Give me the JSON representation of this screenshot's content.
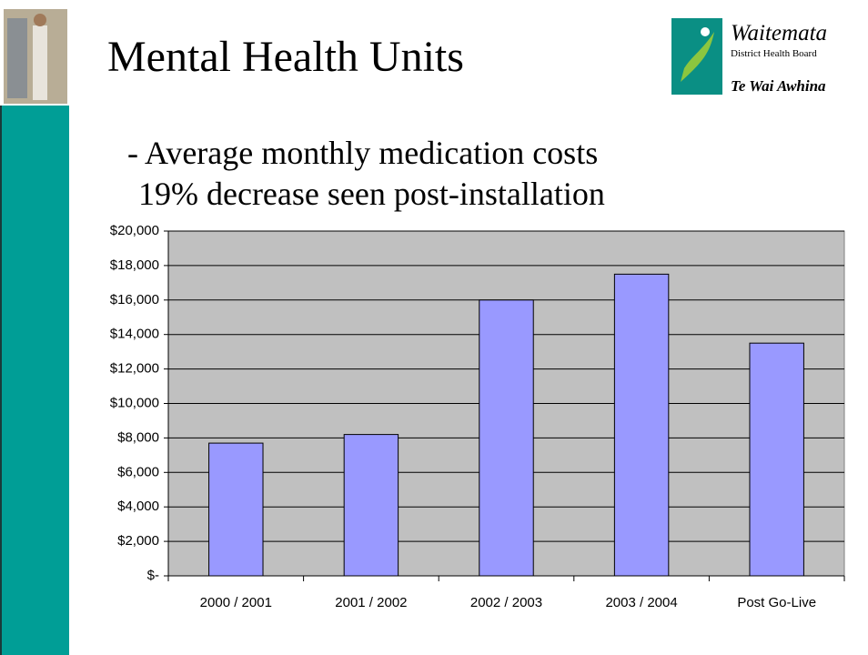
{
  "chart_data": {
    "type": "bar",
    "title": "Mental Health Units",
    "subtitle": [
      "- Average monthly medication costs",
      "19% decrease seen post-installation"
    ],
    "logo": {
      "name": "Waitemata",
      "org": "District Health Board",
      "motto": "Te Wai Awhina"
    },
    "categories": [
      "2000 / 2001",
      "2001 / 2002",
      "2002 / 2003",
      "2003 / 2004",
      "Post Go-Live"
    ],
    "values": [
      7700,
      8200,
      16000,
      17500,
      13500
    ],
    "color": "#9999ff",
    "ylim": [
      0,
      20000
    ],
    "yticks": [
      {
        "value": 0,
        "label": "$-"
      },
      {
        "value": 2000,
        "label": "$2,000"
      },
      {
        "value": 4000,
        "label": "$4,000"
      },
      {
        "value": 6000,
        "label": "$6,000"
      },
      {
        "value": 8000,
        "label": "$8,000"
      },
      {
        "value": 10000,
        "label": "$10,000"
      },
      {
        "value": 12000,
        "label": "$12,000"
      },
      {
        "value": 14000,
        "label": "$14,000"
      },
      {
        "value": 16000,
        "label": "$16,000"
      },
      {
        "value": 18000,
        "label": "$18,000"
      },
      {
        "value": 20000,
        "label": "$20,000"
      }
    ],
    "grid": true
  }
}
